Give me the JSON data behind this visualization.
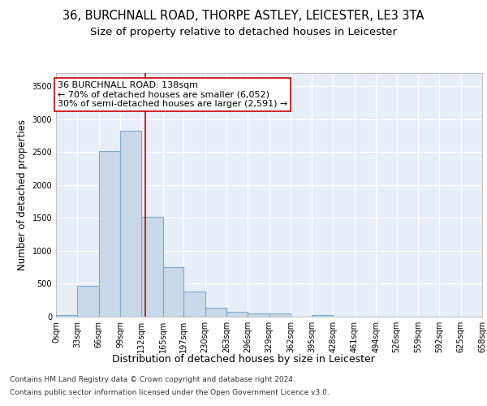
{
  "title": "36, BURCHNALL ROAD, THORPE ASTLEY, LEICESTER, LE3 3TA",
  "subtitle": "Size of property relative to detached houses in Leicester",
  "xlabel": "Distribution of detached houses by size in Leicester",
  "ylabel": "Number of detached properties",
  "bar_edges": [
    0,
    33,
    66,
    99,
    132,
    165,
    197,
    230,
    263,
    296,
    329,
    362,
    395,
    428,
    461,
    494,
    526,
    559,
    592,
    625,
    658
  ],
  "bar_heights": [
    20,
    470,
    2510,
    2820,
    1520,
    750,
    385,
    140,
    70,
    55,
    55,
    0,
    30,
    0,
    0,
    0,
    0,
    0,
    0,
    0
  ],
  "bar_color": "#c8d8e8",
  "bar_edgecolor": "#7aaad0",
  "bar_linewidth": 0.8,
  "property_size": 138,
  "vline_color": "#cc0000",
  "vline_linewidth": 1.2,
  "annotation_line1": "36 BURCHNALL ROAD: 138sqm",
  "annotation_line2": "← 70% of detached houses are smaller (6,052)",
  "annotation_line3": "30% of semi-detached houses are larger (2,591) →",
  "annotation_box_color": "#ffffff",
  "annotation_box_edgecolor": "#cc0000",
  "ylim": [
    0,
    3700
  ],
  "xlim": [
    0,
    658
  ],
  "yticks": [
    0,
    500,
    1000,
    1500,
    2000,
    2500,
    3000,
    3500
  ],
  "xtick_labels": [
    "0sqm",
    "33sqm",
    "66sqm",
    "99sqm",
    "132sqm",
    "165sqm",
    "197sqm",
    "230sqm",
    "263sqm",
    "296sqm",
    "329sqm",
    "362sqm",
    "395sqm",
    "428sqm",
    "461sqm",
    "494sqm",
    "526sqm",
    "559sqm",
    "592sqm",
    "625sqm",
    "658sqm"
  ],
  "xtick_positions": [
    0,
    33,
    66,
    99,
    132,
    165,
    197,
    230,
    263,
    296,
    329,
    362,
    395,
    428,
    461,
    494,
    526,
    559,
    592,
    625,
    658
  ],
  "background_color": "#e8eef8",
  "footer_line1": "Contains HM Land Registry data © Crown copyright and database right 2024.",
  "footer_line2": "Contains public sector information licensed under the Open Government Licence v3.0.",
  "title_fontsize": 10.5,
  "subtitle_fontsize": 9.5,
  "ylabel_fontsize": 8.5,
  "xlabel_fontsize": 9,
  "tick_fontsize": 7,
  "annotation_fontsize": 8,
  "footer_fontsize": 6.5
}
